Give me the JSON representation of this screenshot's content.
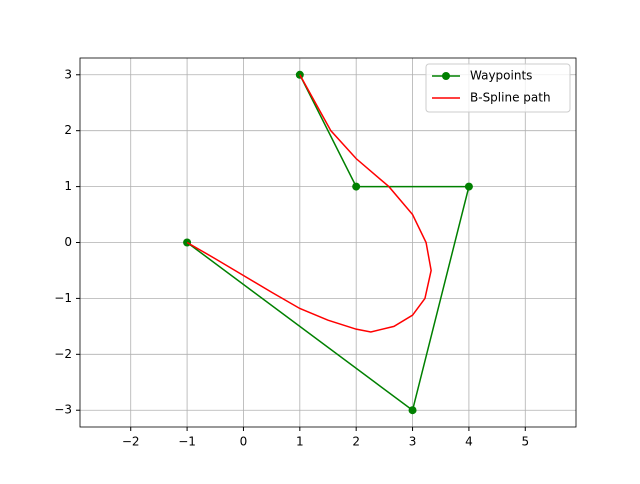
{
  "chart_data": {
    "type": "line",
    "xlim": [
      -2.9,
      5.9
    ],
    "ylim": [
      -3.3,
      3.3
    ],
    "xticks": [
      {
        "value": -2,
        "label": "−2"
      },
      {
        "value": -1,
        "label": "−1"
      },
      0,
      1,
      2,
      3,
      4,
      5
    ],
    "yticks": [
      {
        "value": -3,
        "label": "−3"
      },
      {
        "value": -2,
        "label": "−2"
      },
      {
        "value": -1,
        "label": "−1"
      },
      0,
      1,
      2,
      3
    ],
    "grid": true,
    "legend": "upper right",
    "series": [
      {
        "name": "Waypoints",
        "color": "#008000",
        "marker": true,
        "x": [
          -1,
          3,
          4,
          2,
          1
        ],
        "values": [
          0,
          -3,
          1,
          1,
          3
        ]
      },
      {
        "name": "B-Spline path",
        "color": "#ff0000",
        "marker": false,
        "x": [
          -1,
          -0.5,
          0,
          0.5,
          1,
          1.5,
          2,
          2.26,
          2.67,
          3.0,
          3.22,
          3.33,
          3.24,
          3.0,
          2.58,
          2.0,
          1.55,
          1
        ],
        "values": [
          0,
          -0.29,
          -0.59,
          -0.89,
          -1.18,
          -1.39,
          -1.55,
          -1.6,
          -1.5,
          -1.3,
          -1,
          -0.5,
          0,
          0.5,
          1,
          1.5,
          2,
          3
        ]
      }
    ]
  }
}
